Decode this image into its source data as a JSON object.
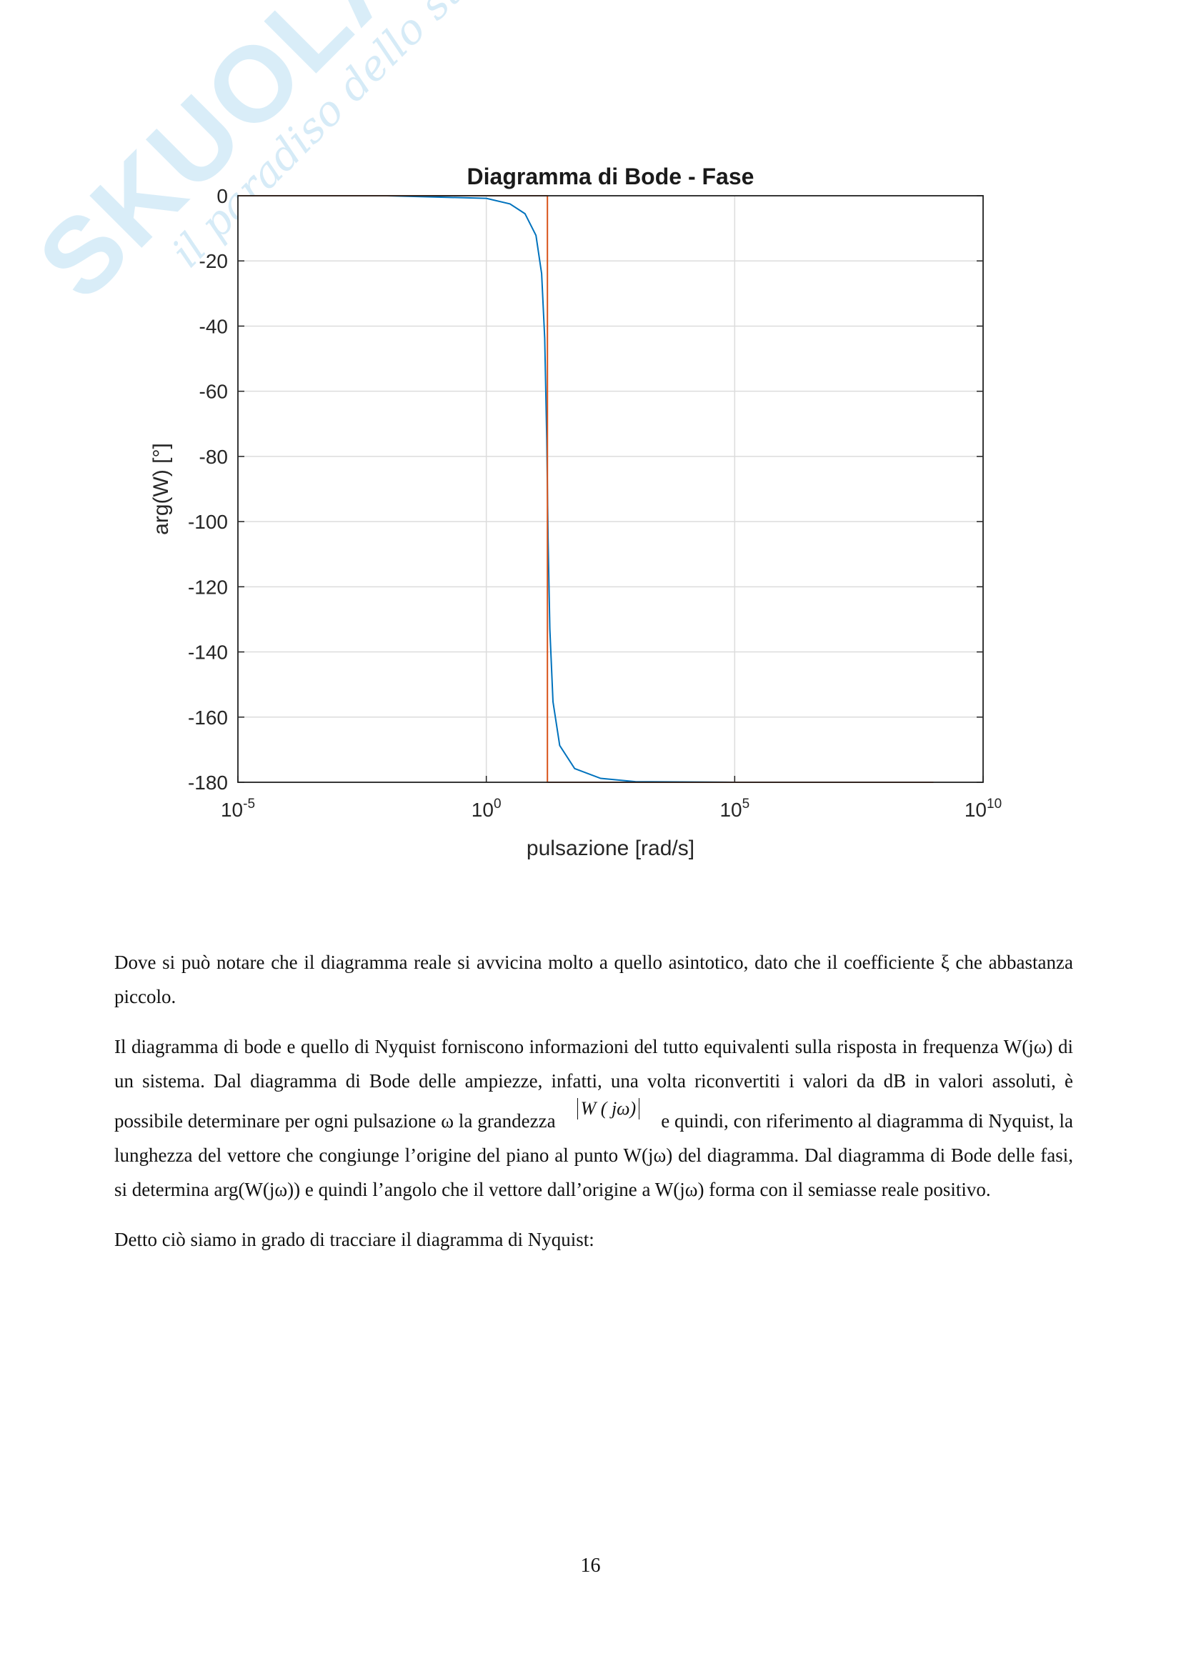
{
  "watermark": {
    "brand": "SKUOLA.net",
    "tagline": "il paradiso dello studente"
  },
  "chart_data": {
    "type": "line",
    "title": "Diagramma di Bode - Fase",
    "xlabel": "pulsazione [rad/s]",
    "ylabel": "arg(W) [°]",
    "xscale": "log",
    "xlim": [
      1e-05,
      10000000000.0
    ],
    "ylim": [
      -180,
      0
    ],
    "xticks": [
      {
        "base": "10",
        "exp": "-5"
      },
      {
        "base": "10",
        "exp": "0"
      },
      {
        "base": "10",
        "exp": "5"
      },
      {
        "base": "10",
        "exp": "10"
      }
    ],
    "xtick_values": [
      1e-05,
      1,
      100000.0,
      10000000000.0
    ],
    "yticks": [
      "0",
      "-20",
      "-40",
      "-60",
      "-80",
      "-100",
      "-120",
      "-140",
      "-160",
      "-180"
    ],
    "ytick_values": [
      0,
      -20,
      -40,
      -60,
      -80,
      -100,
      -120,
      -140,
      -160,
      -180
    ],
    "grid": true,
    "legend": "none",
    "series": [
      {
        "color": "#0072BD",
        "x": [
          1e-05,
          0.01,
          1,
          3,
          6,
          10,
          13,
          15,
          16.5,
          17,
          17.5,
          19,
          22,
          30,
          60,
          200,
          1000,
          100000.0,
          1000000000.0
        ],
        "y": [
          0,
          0,
          -0.8,
          -2.5,
          -5.5,
          -12.2,
          -23.9,
          -43.7,
          -75,
          -90,
          -105,
          -133,
          -155.3,
          -168.7,
          -175.8,
          -178.8,
          -179.8,
          -180,
          -180
        ]
      },
      {
        "color": "#D95319",
        "x": [
          1e-05,
          17,
          17,
          1000000000.0
        ],
        "y": [
          0,
          0,
          -180,
          -180
        ]
      }
    ]
  },
  "paragraphs": [
    "Dove si può notare che il diagramma reale si avvicina molto a quello asintotico, dato che il coefficiente ξ che abbastanza piccolo.",
    {
      "before": "Il diagramma di bode e quello di Nyquist forniscono informazioni del tutto equivalenti sulla risposta in frequenza W(jω) di un sistema. Dal diagramma di Bode delle ampiezze, infatti, una volta riconvertiti i valori da dB in valori assoluti, è possibile determinare per ogni pulsazione ω la grandezza",
      "formula": "W ( jω)",
      "after": "e quindi, con riferimento al diagramma di Nyquist, la lunghezza del vettore che congiunge l’origine del piano al punto W(jω) del diagramma. Dal diagramma di Bode delle fasi, si determina arg(W(jω)) e quindi l’angolo che il vettore dall’origine a W(jω) forma con il semiasse reale positivo."
    },
    "Detto ciò siamo in grado di tracciare il diagramma di Nyquist:"
  ],
  "page_number": "16"
}
